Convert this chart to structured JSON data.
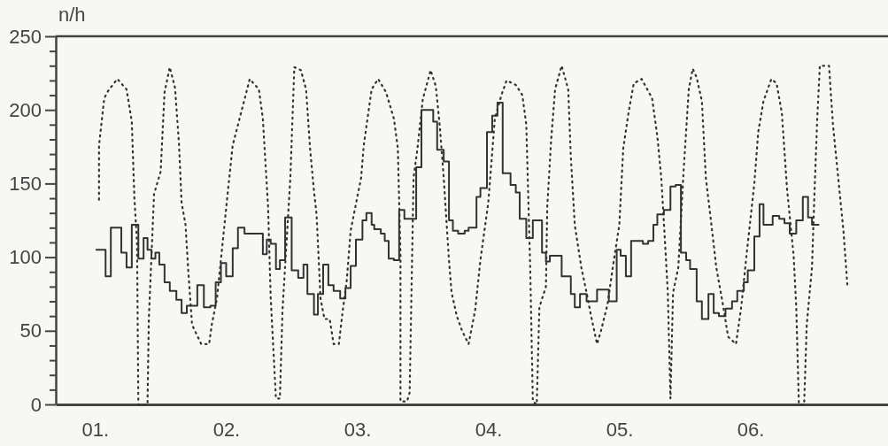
{
  "chart_data": {
    "type": "step",
    "ylabel": "n/h",
    "xlim": [
      0.7,
      7.05
    ],
    "xticks": [
      {
        "value": 1,
        "label": "01."
      },
      {
        "value": 2,
        "label": "02."
      },
      {
        "value": 3,
        "label": "03."
      },
      {
        "value": 4,
        "label": "04."
      },
      {
        "value": 5,
        "label": "05."
      },
      {
        "value": 6,
        "label": "06."
      }
    ],
    "ylim": [
      0,
      250
    ],
    "yticks": [
      0,
      {
        "value": 10,
        "label": null
      },
      {
        "value": 20,
        "label": null
      },
      {
        "value": 30,
        "label": null
      },
      {
        "value": 40,
        "label": null
      },
      50,
      {
        "value": 60,
        "label": null
      },
      {
        "value": 70,
        "label": null
      },
      {
        "value": 80,
        "label": null
      },
      {
        "value": 90,
        "label": null
      },
      100,
      {
        "value": 110,
        "label": null
      },
      {
        "value": 120,
        "label": null
      },
      {
        "value": 130,
        "label": null
      },
      {
        "value": 140,
        "label": null
      },
      150,
      {
        "value": 160,
        "label": null
      },
      {
        "value": 170,
        "label": null
      },
      {
        "value": 180,
        "label": null
      },
      {
        "value": 190,
        "label": null
      },
      200,
      {
        "value": 210,
        "label": null
      },
      {
        "value": 220,
        "label": null
      },
      {
        "value": 230,
        "label": null
      },
      {
        "value": 240,
        "label": null
      },
      250
    ],
    "grid": false,
    "series": [
      {
        "color": "#333333",
        "line_style": "solid",
        "x": [
          1.01,
          1.08,
          1.12,
          1.2,
          1.24,
          1.28,
          1.33,
          1.37,
          1.4,
          1.43,
          1.46,
          1.49,
          1.53,
          1.57,
          1.62,
          1.66,
          1.7,
          1.78,
          1.83,
          1.88,
          1.92,
          1.96,
          2.0,
          2.05,
          2.09,
          2.14,
          2.28,
          2.31,
          2.34,
          2.38,
          2.41,
          2.45,
          2.5,
          2.55,
          2.59,
          2.62,
          2.67,
          2.7,
          2.74,
          2.78,
          2.82,
          2.87,
          2.91,
          2.95,
          2.99,
          3.04,
          3.07,
          3.11,
          3.13,
          3.18,
          3.21,
          3.24,
          3.28,
          3.32,
          3.36,
          3.45,
          3.49,
          3.58,
          3.61,
          3.66,
          3.7,
          3.73,
          3.77,
          3.82,
          3.85,
          3.91,
          3.94,
          3.99,
          4.03,
          4.07,
          4.11,
          4.17,
          4.21,
          4.24,
          4.29,
          4.34,
          4.41,
          4.44,
          4.47,
          4.56,
          4.63,
          4.66,
          4.7,
          4.75,
          4.83,
          4.92,
          4.98,
          5.01,
          5.05,
          5.09,
          5.18,
          5.22,
          5.26,
          5.29,
          5.34,
          5.39,
          5.43,
          5.47,
          5.51,
          5.54,
          5.59,
          5.63,
          5.68,
          5.72,
          5.76,
          5.81,
          5.86,
          5.9,
          5.95,
          5.98,
          6.03,
          6.07,
          6.1,
          6.17,
          6.22,
          6.26,
          6.3,
          6.35,
          6.4,
          6.44,
          6.47,
          6.52
        ],
        "values": [
          105,
          87,
          120,
          103,
          93,
          122,
          99,
          113,
          105,
          99,
          103,
          95,
          83,
          77,
          71,
          62,
          67,
          81,
          66,
          67,
          83,
          96,
          87,
          106,
          120,
          116,
          102,
          112,
          109,
          92,
          98,
          127,
          91,
          86,
          95,
          75,
          61,
          75,
          95,
          81,
          77,
          72,
          79,
          94,
          112,
          125,
          130,
          122,
          119,
          116,
          111,
          99,
          98,
          132,
          126,
          161,
          200,
          192,
          173,
          165,
          125,
          118,
          116,
          118,
          120,
          141,
          147,
          185,
          196,
          205,
          157,
          149,
          144,
          126,
          113,
          125,
          103,
          97,
          101,
          87,
          75,
          66,
          75,
          70,
          78,
          70,
          105,
          101,
          87,
          111,
          109,
          111,
          122,
          129,
          132,
          148,
          149,
          103,
          98,
          92,
          70,
          58,
          75,
          62,
          60,
          65,
          70,
          77,
          83,
          91,
          114,
          136,
          122,
          128,
          126,
          123,
          116,
          125,
          141,
          127,
          122,
          122
        ]
      },
      {
        "type": "line",
        "color": "#333333",
        "line_style": "dotted",
        "x": [
          1.03,
          1.03,
          1.07,
          1.1,
          1.17,
          1.24,
          1.28,
          1.3,
          1.32,
          1.33,
          1.4,
          1.41,
          1.45,
          1.5,
          1.53,
          1.57,
          1.61,
          1.64,
          1.66,
          1.69,
          1.71,
          1.74,
          1.81,
          1.87,
          1.89,
          1.93,
          2.01,
          2.05,
          2.18,
          2.25,
          2.28,
          2.32,
          2.34,
          2.38,
          2.41,
          2.43,
          2.49,
          2.52,
          2.57,
          2.61,
          2.64,
          2.67,
          2.69,
          2.72,
          2.75,
          2.79,
          2.82,
          2.86,
          2.89,
          2.92,
          2.95,
          3.03,
          3.05,
          3.11,
          3.16,
          3.22,
          3.28,
          3.31,
          3.33,
          3.33,
          3.38,
          3.4,
          3.43,
          3.46,
          3.5,
          3.56,
          3.6,
          3.63,
          3.66,
          3.7,
          3.72,
          3.76,
          3.8,
          3.85,
          3.9,
          3.94,
          4.0,
          4.05,
          4.1,
          4.14,
          4.21,
          4.26,
          4.29,
          4.32,
          4.34,
          4.37,
          4.39,
          4.44,
          4.45,
          4.48,
          4.51,
          4.56,
          4.61,
          4.63,
          4.66,
          4.71,
          4.75,
          4.78,
          4.83,
          4.86,
          4.91,
          4.95,
          5.0,
          5.03,
          5.07,
          5.11,
          5.17,
          5.25,
          5.29,
          5.32,
          5.35,
          5.37,
          5.39,
          5.41,
          5.45,
          5.49,
          5.53,
          5.56,
          5.59,
          5.63,
          5.66,
          5.7,
          5.74,
          5.79,
          5.83,
          5.89,
          5.93,
          5.97,
          6.03,
          6.06,
          6.1,
          6.16,
          6.2,
          6.24,
          6.28,
          6.33,
          6.35,
          6.37,
          6.41,
          6.43,
          6.47,
          6.49,
          6.51,
          6.53,
          6.6,
          6.63,
          6.67,
          6.71,
          6.74
        ],
        "values": [
          139,
          176,
          208,
          213,
          221,
          214,
          192,
          140,
          110,
          0,
          0,
          58,
          143,
          158,
          212,
          229,
          215,
          177,
          137,
          122,
          92,
          54,
          41,
          41,
          54,
          72,
          142,
          176,
          221,
          214,
          194,
          134,
          72,
          4,
          4,
          64,
          154,
          229,
          227,
          214,
          174,
          145,
          129,
          72,
          58,
          58,
          41,
          41,
          64,
          84,
          118,
          154,
          176,
          214,
          221,
          212,
          194,
          174,
          102,
          2,
          2,
          8,
          154,
          174,
          207,
          227,
          216,
          189,
          154,
          98,
          76,
          60,
          50,
          41,
          64,
          98,
          137,
          194,
          210,
          220,
          217,
          210,
          190,
          93,
          2,
          0,
          66,
          80,
          134,
          180,
          214,
          230,
          214,
          168,
          122,
          93,
          76,
          62,
          41,
          50,
          68,
          93,
          122,
          174,
          198,
          218,
          221,
          208,
          182,
          154,
          108,
          76,
          4,
          76,
          93,
          158,
          214,
          228,
          222,
          206,
          154,
          124,
          93,
          68,
          46,
          41,
          66,
          101,
          150,
          185,
          206,
          221,
          218,
          198,
          146,
          101,
          66,
          0,
          0,
          54,
          93,
          146,
          194,
          230,
          230,
          190,
          154,
          118,
          81
        ]
      }
    ]
  }
}
